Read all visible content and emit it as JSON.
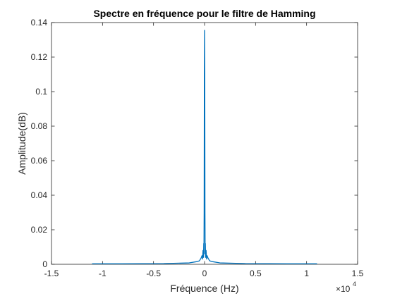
{
  "chart_data": {
    "type": "line",
    "title": "Spectre en fréquence pour le filtre de Hamming",
    "xlabel": "Fréquence (Hz)",
    "ylabel": "Amplitude(dB)",
    "x_exponent_base": "×10",
    "x_exponent_power": "4",
    "xlim": [
      -15000,
      15000
    ],
    "ylim": [
      0,
      0.14
    ],
    "grid": false,
    "xticks": [
      -15000,
      -10000,
      -5000,
      0,
      5000,
      10000,
      15000
    ],
    "xtick_labels": [
      "-1.5",
      "-1",
      "-0.5",
      "0",
      "0.5",
      "1",
      "1.5"
    ],
    "yticks": [
      0,
      0.02,
      0.04,
      0.06,
      0.08,
      0.1,
      0.12,
      0.14
    ],
    "ytick_labels": [
      "0",
      "0.02",
      "0.04",
      "0.06",
      "0.08",
      "0.1",
      "0.12",
      "0.14"
    ],
    "series": [
      {
        "color": "#0072BD",
        "x": [
          -11025,
          -8000,
          -4000,
          -1500,
          -800,
          -500,
          -350,
          -250,
          -200,
          -150,
          -100,
          -80,
          -60,
          -40,
          -20,
          0,
          20,
          40,
          60,
          80,
          100,
          150,
          200,
          250,
          350,
          500,
          800,
          1500,
          4000,
          8000,
          11025
        ],
        "y": [
          0.0003,
          0.0003,
          0.0004,
          0.0008,
          0.0015,
          0.002,
          0.0035,
          0.005,
          0.003,
          0.008,
          0.004,
          0.012,
          0.006,
          0.03,
          0.11,
          0.1355,
          0.11,
          0.03,
          0.006,
          0.012,
          0.004,
          0.008,
          0.003,
          0.005,
          0.0035,
          0.002,
          0.0015,
          0.0008,
          0.0004,
          0.0003,
          0.0003
        ]
      }
    ]
  }
}
